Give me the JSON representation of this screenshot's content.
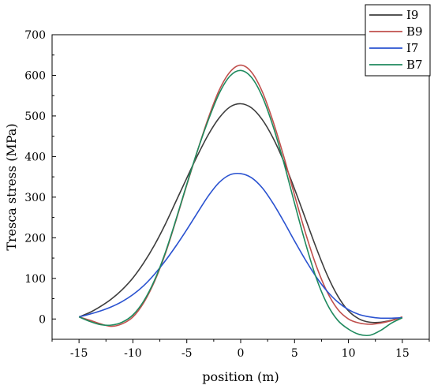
{
  "chart_data": {
    "type": "line",
    "title": "",
    "xlabel": "position (m)",
    "ylabel": "Tresca stress (MPa)",
    "xlim": [
      -17.5,
      17.5
    ],
    "ylim": [
      -50,
      700
    ],
    "x_ticks": [
      -15,
      -10,
      -5,
      0,
      5,
      10,
      15
    ],
    "y_ticks": [
      0,
      100,
      200,
      300,
      400,
      500,
      600,
      700
    ],
    "grid": false,
    "legend_position": "top-right",
    "series": [
      {
        "name": "I9",
        "color": "#3d3d3d",
        "points": [
          [
            -15,
            5
          ],
          [
            -14,
            16
          ],
          [
            -13,
            31
          ],
          [
            -12,
            49
          ],
          [
            -11,
            72
          ],
          [
            -10,
            101
          ],
          [
            -9,
            138
          ],
          [
            -8,
            182
          ],
          [
            -7,
            233
          ],
          [
            -6,
            290
          ],
          [
            -5,
            347
          ],
          [
            -4,
            403
          ],
          [
            -3,
            454
          ],
          [
            -2,
            495
          ],
          [
            -1,
            522
          ],
          [
            0,
            530
          ],
          [
            1,
            520
          ],
          [
            2,
            491
          ],
          [
            3,
            446
          ],
          [
            4,
            388
          ],
          [
            5,
            320
          ],
          [
            6,
            248
          ],
          [
            7,
            176
          ],
          [
            8,
            110
          ],
          [
            9,
            57
          ],
          [
            10,
            20
          ],
          [
            11,
            0
          ],
          [
            12,
            -8
          ],
          [
            13,
            -8
          ],
          [
            14,
            -3
          ],
          [
            15,
            5
          ]
        ]
      },
      {
        "name": "B9",
        "color": "#c0504d",
        "points": [
          [
            -15,
            5
          ],
          [
            -14,
            -3
          ],
          [
            -13,
            -12
          ],
          [
            -12,
            -18
          ],
          [
            -11,
            -12
          ],
          [
            -10,
            5
          ],
          [
            -9,
            40
          ],
          [
            -8,
            92
          ],
          [
            -7,
            160
          ],
          [
            -6,
            243
          ],
          [
            -5,
            330
          ],
          [
            -4,
            415
          ],
          [
            -3,
            495
          ],
          [
            -2,
            563
          ],
          [
            -1,
            608
          ],
          [
            0,
            625
          ],
          [
            1,
            608
          ],
          [
            2,
            560
          ],
          [
            3,
            487
          ],
          [
            4,
            400
          ],
          [
            5,
            305
          ],
          [
            6,
            213
          ],
          [
            7,
            132
          ],
          [
            8,
            68
          ],
          [
            9,
            24
          ],
          [
            10,
            0
          ],
          [
            11,
            -10
          ],
          [
            12,
            -13
          ],
          [
            13,
            -10
          ],
          [
            14,
            -4
          ],
          [
            15,
            5
          ]
        ]
      },
      {
        "name": "I7",
        "color": "#2a52d0",
        "points": [
          [
            -15,
            5
          ],
          [
            -14,
            12
          ],
          [
            -13,
            20
          ],
          [
            -12,
            30
          ],
          [
            -11,
            43
          ],
          [
            -10,
            60
          ],
          [
            -9,
            82
          ],
          [
            -8,
            110
          ],
          [
            -7,
            143
          ],
          [
            -6,
            180
          ],
          [
            -5,
            220
          ],
          [
            -4,
            262
          ],
          [
            -3,
            303
          ],
          [
            -2,
            336
          ],
          [
            -1,
            355
          ],
          [
            0,
            358
          ],
          [
            1,
            348
          ],
          [
            2,
            323
          ],
          [
            3,
            285
          ],
          [
            4,
            240
          ],
          [
            5,
            192
          ],
          [
            6,
            146
          ],
          [
            7,
            104
          ],
          [
            8,
            69
          ],
          [
            9,
            42
          ],
          [
            10,
            23
          ],
          [
            11,
            11
          ],
          [
            12,
            5
          ],
          [
            13,
            2
          ],
          [
            14,
            2
          ],
          [
            15,
            3
          ]
        ]
      },
      {
        "name": "B7",
        "color": "#1f8a5e",
        "points": [
          [
            -15,
            5
          ],
          [
            -14,
            -6
          ],
          [
            -13,
            -14
          ],
          [
            -12,
            -15
          ],
          [
            -11,
            -8
          ],
          [
            -10,
            10
          ],
          [
            -9,
            44
          ],
          [
            -8,
            95
          ],
          [
            -7,
            163
          ],
          [
            -6,
            245
          ],
          [
            -5,
            332
          ],
          [
            -4,
            415
          ],
          [
            -3,
            490
          ],
          [
            -2,
            555
          ],
          [
            -1,
            598
          ],
          [
            0,
            612
          ],
          [
            1,
            595
          ],
          [
            2,
            548
          ],
          [
            3,
            475
          ],
          [
            4,
            385
          ],
          [
            5,
            285
          ],
          [
            6,
            188
          ],
          [
            7,
            102
          ],
          [
            8,
            38
          ],
          [
            9,
            -3
          ],
          [
            10,
            -25
          ],
          [
            11,
            -38
          ],
          [
            12,
            -40
          ],
          [
            13,
            -28
          ],
          [
            14,
            -10
          ],
          [
            15,
            3
          ]
        ]
      }
    ]
  }
}
